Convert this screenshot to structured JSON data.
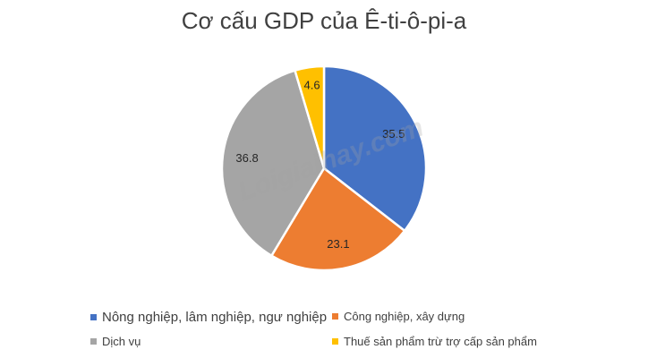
{
  "chart_data": {
    "type": "pie",
    "title": "Cơ cấu GDP của Ê-ti-ô-pi-a",
    "categories": [
      "Nông nghiệp, lâm nghiệp, ngư nghiệp",
      "Công nghiệp, xây dựng",
      "Dịch vụ",
      "Thuế sản phẩm trừ trợ cấp sản phẩm"
    ],
    "values": [
      35.5,
      23.1,
      36.8,
      4.6
    ],
    "colors": [
      "#4472c4",
      "#ed7d31",
      "#a5a5a5",
      "#ffc000"
    ],
    "legend": "bottom"
  },
  "watermark": "Loigiaihay.com"
}
